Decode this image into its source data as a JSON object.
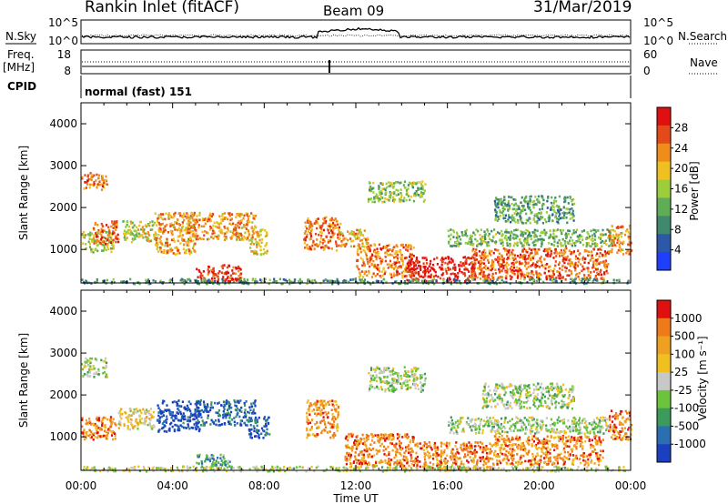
{
  "header": {
    "title": "Rankin Inlet (fitACF)",
    "beam": "Beam 09",
    "date": "31/Mar/2019"
  },
  "top_panels": {
    "nsky_label": "N.Sky",
    "nsky_ticks": [
      "10^5",
      "10^0"
    ],
    "nsearch_label": "N.Search",
    "nsearch_ticks": [
      "10^5",
      "10^0"
    ],
    "freq_label_1": "Freq.",
    "freq_label_2": "[MHz]",
    "freq_ticks": [
      "18",
      "8"
    ],
    "nave_label": "Nave",
    "nave_ticks": [
      "60",
      "0"
    ],
    "cpid_label": "CPID",
    "cpid_value": "normal (fast) 151"
  },
  "chart_data": [
    {
      "type": "heatmap",
      "parameter": "power",
      "ylabel": "Slant Range [km]",
      "yticks": [
        "1000",
        "2000",
        "3000",
        "4000"
      ],
      "ylim": [
        200,
        4500
      ],
      "xlim_hours": [
        0,
        24
      ],
      "colorbar": {
        "label": "Power [dB]",
        "ticks": [
          "4",
          "8",
          "12",
          "16",
          "20",
          "24",
          "28"
        ],
        "colors": [
          "#1f3fff",
          "#2b58a8",
          "#3f8a6e",
          "#5fae55",
          "#9ccd3a",
          "#f0c020",
          "#f08c1a",
          "#e4491a",
          "#e01010"
        ]
      },
      "echo_regions": [
        {
          "t0": 0.0,
          "t1": 1.1,
          "r0": 2450,
          "r1": 2850,
          "level": 0.75
        },
        {
          "t0": 0.0,
          "t1": 1.4,
          "r0": 950,
          "r1": 1450,
          "level": 0.5
        },
        {
          "t0": 0.5,
          "t1": 1.6,
          "r0": 1150,
          "r1": 1700,
          "level": 0.8
        },
        {
          "t0": 1.8,
          "t1": 3.3,
          "r0": 1200,
          "r1": 1700,
          "level": 0.55
        },
        {
          "t0": 3.2,
          "t1": 5.0,
          "r0": 900,
          "r1": 1900,
          "level": 0.7
        },
        {
          "t0": 4.6,
          "t1": 7.6,
          "r0": 1250,
          "r1": 1900,
          "level": 0.7
        },
        {
          "t0": 5.0,
          "t1": 7.0,
          "r0": 250,
          "r1": 650,
          "level": 0.9
        },
        {
          "t0": 7.3,
          "t1": 8.1,
          "r0": 900,
          "r1": 1500,
          "level": 0.6
        },
        {
          "t0": 9.7,
          "t1": 11.3,
          "r0": 1000,
          "r1": 1800,
          "level": 0.75
        },
        {
          "t0": 11.2,
          "t1": 12.5,
          "r0": 1100,
          "r1": 1500,
          "level": 0.65
        },
        {
          "t0": 12.0,
          "t1": 14.5,
          "r0": 350,
          "r1": 1150,
          "level": 0.75
        },
        {
          "t0": 12.5,
          "t1": 15.0,
          "r0": 2150,
          "r1": 2650,
          "level": 0.45
        },
        {
          "t0": 14.2,
          "t1": 17.2,
          "r0": 250,
          "r1": 850,
          "level": 0.95
        },
        {
          "t0": 17.0,
          "t1": 23.0,
          "r0": 300,
          "r1": 1050,
          "level": 0.8
        },
        {
          "t0": 16.0,
          "t1": 23.2,
          "r0": 1100,
          "r1": 1500,
          "level": 0.4
        },
        {
          "t0": 18.0,
          "t1": 21.5,
          "r0": 1650,
          "r1": 2300,
          "level": 0.35
        },
        {
          "t0": 23.0,
          "t1": 24.0,
          "r0": 900,
          "r1": 1600,
          "level": 0.7
        },
        {
          "t0": 0.0,
          "t1": 24.0,
          "r0": 200,
          "r1": 320,
          "level": 0.3
        }
      ]
    },
    {
      "type": "heatmap",
      "parameter": "velocity",
      "ylabel": "Slant Range [km]",
      "yticks": [
        "1000",
        "2000",
        "3000",
        "4000"
      ],
      "ylim": [
        200,
        4500
      ],
      "xlim_hours": [
        0,
        24
      ],
      "xticks": [
        "00:00",
        "04:00",
        "08:00",
        "12:00",
        "16:00",
        "20:00",
        "00:00"
      ],
      "xlabel": "Time UT",
      "colorbar": {
        "label": "Velocity [m s⁻¹]",
        "ticks": [
          "1000",
          "500",
          "100",
          "25",
          "-25",
          "-100",
          "-500",
          "-1000"
        ],
        "colors": [
          "#1a3fbf",
          "#2b6fb0",
          "#3b9a5c",
          "#6cc43c",
          "#c8c8c8",
          "#f0c020",
          "#f0a020",
          "#ef7a1a",
          "#e01010"
        ]
      },
      "echo_regions": [
        {
          "t0": 0.0,
          "t1": 1.1,
          "r0": 2450,
          "r1": 2900,
          "level": 0.45
        },
        {
          "t0": 0.0,
          "t1": 1.5,
          "r0": 950,
          "r1": 1500,
          "level": 0.8
        },
        {
          "t0": 1.6,
          "t1": 3.2,
          "r0": 1200,
          "r1": 1700,
          "level": 0.6
        },
        {
          "t0": 3.3,
          "t1": 5.2,
          "r0": 1150,
          "r1": 1900,
          "level": 0.05
        },
        {
          "t0": 5.0,
          "t1": 7.6,
          "r0": 1300,
          "r1": 1900,
          "level": 0.15
        },
        {
          "t0": 5.0,
          "t1": 6.5,
          "r0": 250,
          "r1": 600,
          "level": 0.3
        },
        {
          "t0": 7.3,
          "t1": 8.2,
          "r0": 1000,
          "r1": 1500,
          "level": 0.1
        },
        {
          "t0": 9.8,
          "t1": 11.2,
          "r0": 1000,
          "r1": 1900,
          "level": 0.75
        },
        {
          "t0": 11.5,
          "t1": 14.5,
          "r0": 300,
          "r1": 1100,
          "level": 0.8
        },
        {
          "t0": 12.5,
          "t1": 15.0,
          "r0": 2100,
          "r1": 2700,
          "level": 0.45
        },
        {
          "t0": 14.5,
          "t1": 18.0,
          "r0": 250,
          "r1": 900,
          "level": 0.8
        },
        {
          "t0": 18.0,
          "t1": 22.8,
          "r0": 350,
          "r1": 1050,
          "level": 0.78
        },
        {
          "t0": 16.0,
          "t1": 23.0,
          "r0": 1100,
          "r1": 1500,
          "level": 0.45
        },
        {
          "t0": 17.5,
          "t1": 21.5,
          "r0": 1700,
          "r1": 2300,
          "level": 0.45
        },
        {
          "t0": 23.0,
          "t1": 24.0,
          "r0": 950,
          "r1": 1650,
          "level": 0.8
        },
        {
          "t0": 0.0,
          "t1": 24.0,
          "r0": 200,
          "r1": 320,
          "level": 0.5
        }
      ]
    }
  ]
}
